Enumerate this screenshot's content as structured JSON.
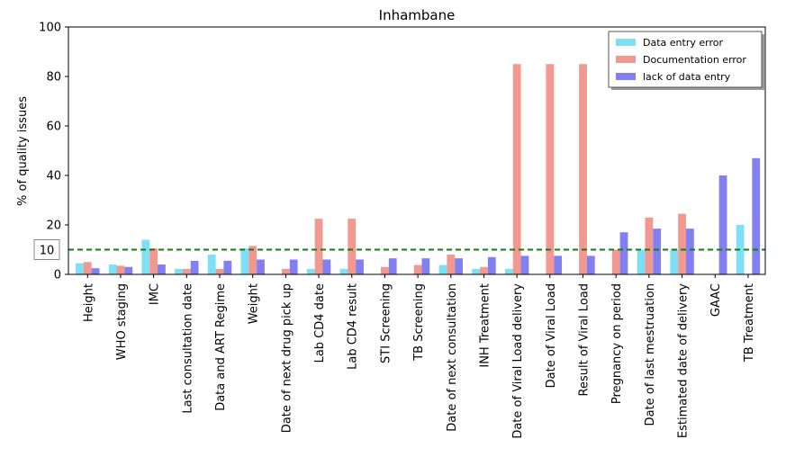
{
  "chart_data": {
    "type": "bar",
    "title": "Inhambane",
    "xlabel": "",
    "ylabel": "% of quality issues",
    "ylim": [
      0,
      100
    ],
    "yticks": [
      0,
      20,
      40,
      60,
      80,
      100
    ],
    "grid": false,
    "legend_position": "top-right",
    "categories": [
      "Height",
      "WHO staging",
      "IMC",
      "Last consultation date",
      "Data and ART Regime",
      "Weight",
      "Date of next drug pick up",
      "Lab CD4 date",
      "Lab CD4 result",
      "STI Screening",
      "TB Screening",
      "Date of next consultation",
      "INH Treatment",
      "Date of Viral Load delivery",
      "Date of Viral Load",
      "Result of Viral Load",
      "Pregnancy on period",
      "Date of last mestruation",
      "Estimated date of delivery",
      "GAAC",
      "TB Treatment"
    ],
    "series": [
      {
        "name": "Data entry error",
        "color": "#7fdff5",
        "values": [
          4.5,
          4,
          14,
          2.2,
          8,
          10.5,
          0,
          2.2,
          2.2,
          0,
          0,
          3.8,
          2.2,
          2.2,
          0,
          0,
          0,
          10,
          10,
          0,
          20
        ]
      },
      {
        "name": "Documentation error",
        "color": "#f19891",
        "values": [
          5,
          3.5,
          10.5,
          2.2,
          2.2,
          11.5,
          2.2,
          22.5,
          22.5,
          3,
          3.8,
          8,
          3,
          85,
          85,
          85,
          10,
          23,
          24.5,
          0,
          0
        ]
      },
      {
        "name": "lack of data entry",
        "color": "#8280f0",
        "values": [
          2.5,
          3,
          4,
          5.5,
          5.5,
          6,
          6,
          6,
          6,
          6.5,
          6.5,
          6.5,
          7,
          7.5,
          7.5,
          7.5,
          17,
          18.5,
          18.5,
          40,
          47
        ]
      }
    ],
    "reference_line": {
      "value": 10,
      "label": "10",
      "color": "#1a7a1a",
      "style": "dashed"
    }
  }
}
